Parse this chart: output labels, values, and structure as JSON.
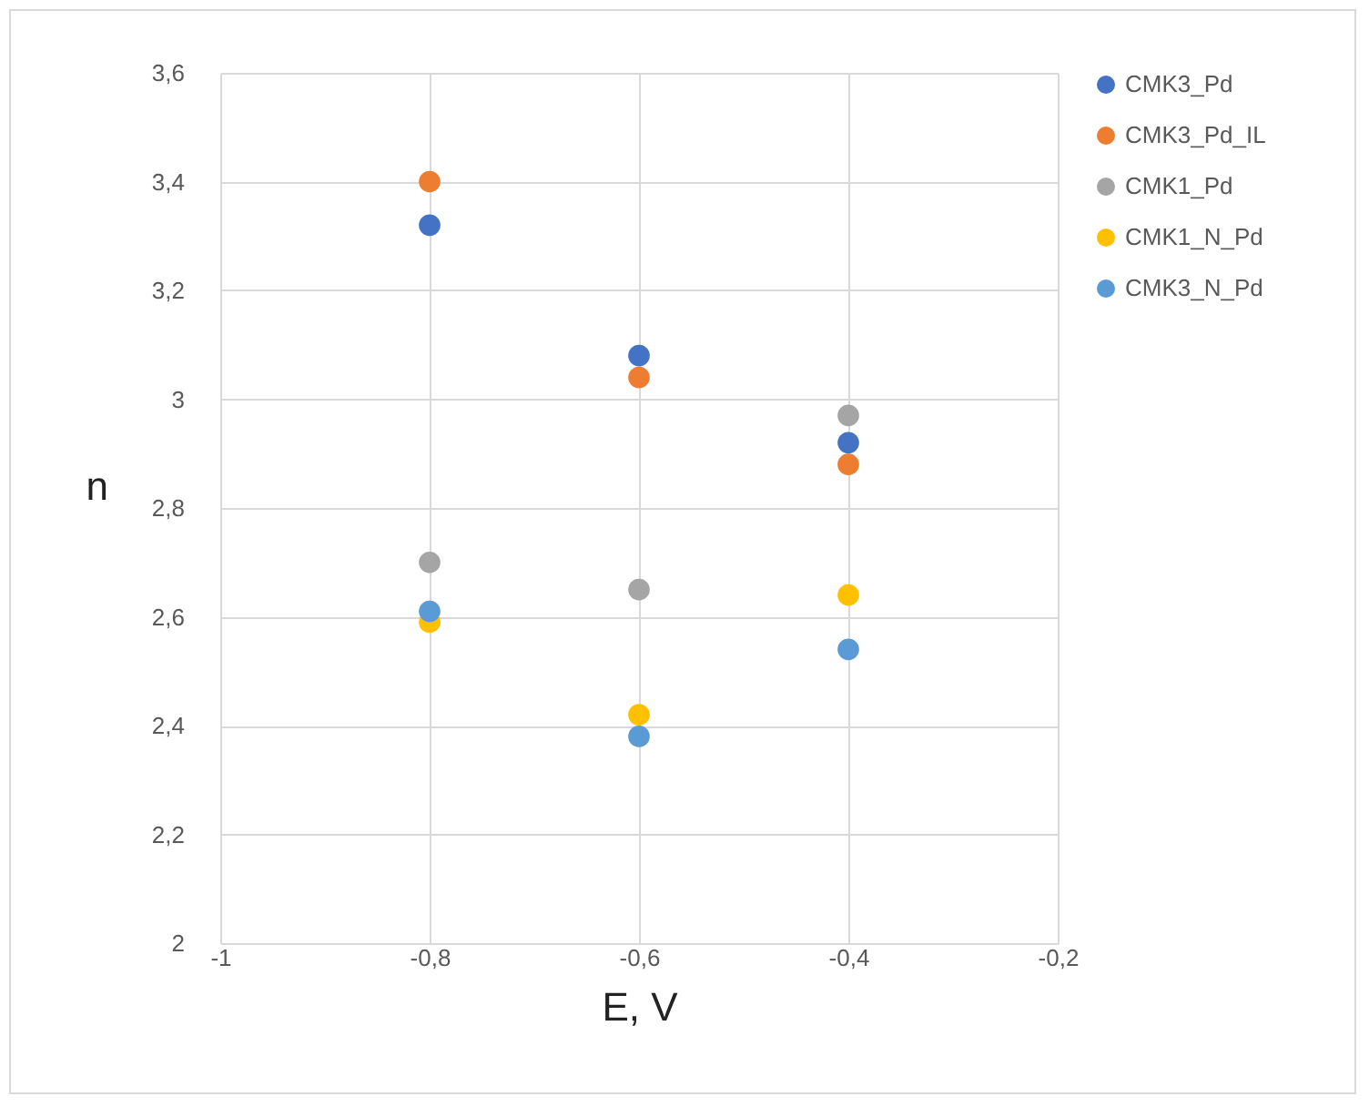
{
  "chart_data": {
    "type": "scatter",
    "xlabel": "E, V",
    "ylabel": "n",
    "x": [
      -0.8,
      -0.6,
      -0.4
    ],
    "series": [
      {
        "name": "CMK3_Pd",
        "color": "#4472c4",
        "values": [
          3.32,
          3.08,
          2.92
        ]
      },
      {
        "name": "CMK3_Pd_IL",
        "color": "#ed7d31",
        "values": [
          3.4,
          3.04,
          2.88
        ]
      },
      {
        "name": "CMK1_Pd",
        "color": "#a5a5a5",
        "values": [
          2.7,
          2.65,
          2.97
        ]
      },
      {
        "name": "CMK1_N_Pd",
        "color": "#ffc000",
        "values": [
          2.59,
          2.42,
          2.64
        ]
      },
      {
        "name": "CMK3_N_Pd",
        "color": "#5b9bd5",
        "values": [
          2.61,
          2.38,
          2.54
        ]
      }
    ],
    "xlim": [
      -1,
      -0.2
    ],
    "xticks": [
      {
        "value": -1,
        "label": "-1"
      },
      {
        "value": -0.8,
        "label": "-0,8"
      },
      {
        "value": -0.6,
        "label": "-0,6"
      },
      {
        "value": -0.4,
        "label": "-0,4"
      },
      {
        "value": -0.2,
        "label": "-0,2"
      }
    ],
    "ylim": [
      2,
      3.6
    ],
    "yticks": [
      2,
      {
        "value": 2.2,
        "label": "2,2"
      },
      {
        "value": 2.4,
        "label": "2,4"
      },
      {
        "value": 2.6,
        "label": "2,6"
      },
      {
        "value": 2.8,
        "label": "2,8"
      },
      3,
      {
        "value": 3.2,
        "label": "3,2"
      },
      {
        "value": 3.4,
        "label": "3,4"
      },
      {
        "value": 3.6,
        "label": "3,6"
      }
    ],
    "grid": true,
    "legend": "right",
    "marker": "circle"
  }
}
